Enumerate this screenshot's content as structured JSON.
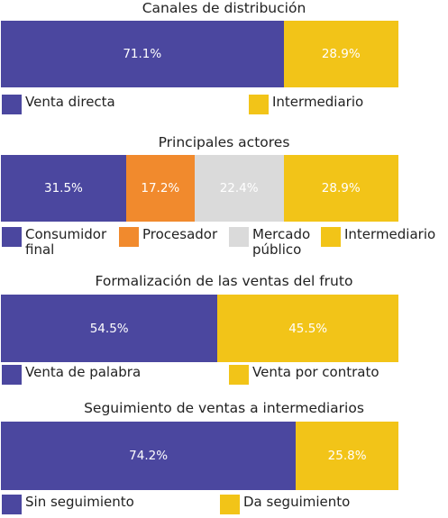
{
  "colors": {
    "blue": "#4b479f",
    "yellow": "#f2c418",
    "orange": "#f18a2d",
    "gray": "#dadada"
  },
  "chart_data": [
    {
      "type": "bar",
      "stacked": true,
      "orientation": "horizontal",
      "title": "Canales de distribución",
      "series": [
        {
          "name": "Venta directa",
          "value": 71.1,
          "label": "71.1%",
          "color": "#4b479f"
        },
        {
          "name": "Intermediario",
          "value": 28.9,
          "label": "28.9%",
          "color": "#f2c418"
        }
      ]
    },
    {
      "type": "bar",
      "stacked": true,
      "orientation": "horizontal",
      "title": "Principales actores",
      "series": [
        {
          "name": "Consumidor\nfinal",
          "value": 31.5,
          "label": "31.5%",
          "color": "#4b479f"
        },
        {
          "name": "Procesador",
          "value": 17.2,
          "label": "17.2%",
          "color": "#f18a2d"
        },
        {
          "name": "Mercado\npúblico",
          "value": 22.4,
          "label": "22.4%",
          "color": "#dadada"
        },
        {
          "name": "Intermediario",
          "value": 28.9,
          "label": "28.9%",
          "color": "#f2c418"
        }
      ]
    },
    {
      "type": "bar",
      "stacked": true,
      "orientation": "horizontal",
      "title": "Formalización de las ventas del fruto",
      "series": [
        {
          "name": "Venta de palabra",
          "value": 54.5,
          "label": "54.5%",
          "color": "#4b479f"
        },
        {
          "name": "Venta por contrato",
          "value": 45.5,
          "label": "45.5%",
          "color": "#f2c418"
        }
      ]
    },
    {
      "type": "bar",
      "stacked": true,
      "orientation": "horizontal",
      "title": "Seguimiento de ventas a intermediarios",
      "series": [
        {
          "name": "Sin seguimiento",
          "value": 74.2,
          "label": "74.2%",
          "color": "#4b479f"
        },
        {
          "name": "Da seguimiento",
          "value": 25.8,
          "label": "25.8%",
          "color": "#f2c418"
        }
      ]
    }
  ]
}
